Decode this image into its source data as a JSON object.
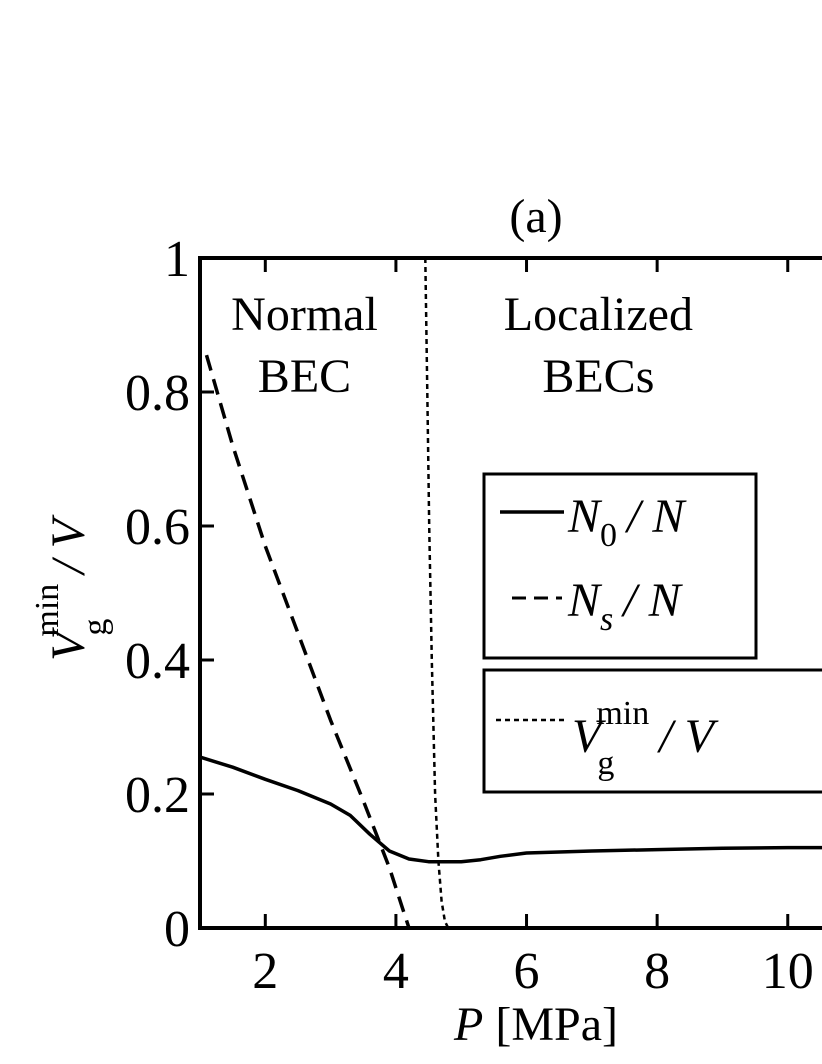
{
  "chart_data": {
    "type": "line",
    "title": "(a)",
    "xlabel_var": "P",
    "xlabel_unit": "[MPa]",
    "ylabel_var": "V",
    "ylabel_sub": "g",
    "ylabel_sup": "min",
    "ylabel_rest": "/ V",
    "xlim": [
      1,
      10.8
    ],
    "ylim": [
      0,
      1
    ],
    "xticks": [
      2,
      4,
      6,
      8,
      10
    ],
    "yticks": [
      0,
      0.2,
      0.4,
      0.6,
      0.8,
      1
    ],
    "ytick_labels": [
      "0",
      "0.2",
      "0.4",
      "0.6",
      "0.8",
      "1"
    ],
    "grid": false,
    "regions": [
      {
        "line1": "Normal",
        "line2": "BEC",
        "x": 2.6
      },
      {
        "line1": "Localized",
        "line2": "BECs",
        "x": 7.1
      }
    ],
    "series": [
      {
        "name": "N0 / N",
        "style": "solid",
        "x": [
          1.0,
          1.5,
          2.0,
          2.5,
          3.0,
          3.3,
          3.6,
          3.9,
          4.2,
          4.5,
          4.8,
          5.0,
          5.3,
          5.6,
          6.0,
          7.0,
          8.0,
          9.0,
          10.0,
          10.8
        ],
        "y": [
          0.255,
          0.24,
          0.222,
          0.205,
          0.185,
          0.168,
          0.14,
          0.115,
          0.103,
          0.099,
          0.099,
          0.099,
          0.102,
          0.107,
          0.112,
          0.115,
          0.117,
          0.119,
          0.12,
          0.12
        ]
      },
      {
        "name": "Ns / N",
        "style": "dashed",
        "x": [
          1.1,
          1.5,
          2.0,
          2.5,
          3.0,
          3.5,
          3.9,
          4.1,
          4.2
        ],
        "y": [
          0.855,
          0.72,
          0.57,
          0.44,
          0.31,
          0.19,
          0.09,
          0.03,
          0.0
        ]
      },
      {
        "name": "Vg min / V",
        "style": "dotted",
        "x": [
          4.45,
          4.48,
          4.51,
          4.55,
          4.6,
          4.65,
          4.7,
          4.75,
          4.8
        ],
        "y": [
          1.0,
          0.8,
          0.6,
          0.4,
          0.2,
          0.1,
          0.04,
          0.01,
          0.0
        ]
      }
    ],
    "legend": {
      "entry1_var": "N",
      "entry1_sub": "0",
      "entry1_rest": "/ N",
      "entry2_var": "N",
      "entry2_sub": "s",
      "entry2_rest": "/ N",
      "entry3_var": "V",
      "entry3_sub": "g",
      "entry3_sup": "min",
      "entry3_rest": "/ V"
    }
  }
}
